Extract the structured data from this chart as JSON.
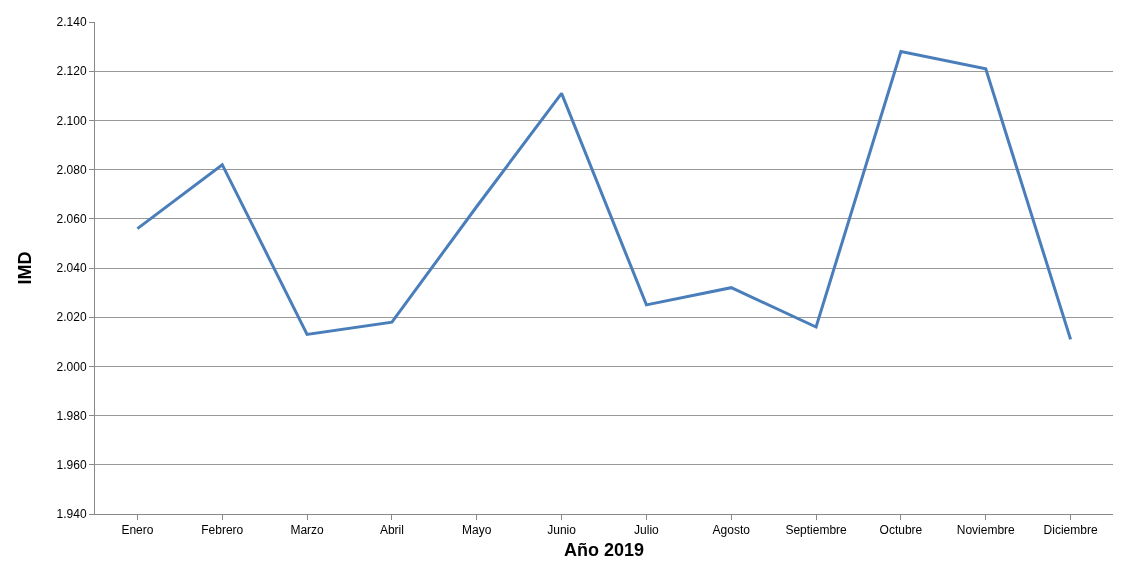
{
  "chart_data": {
    "type": "line",
    "xlabel": "Año 2019",
    "ylabel": "IMD",
    "categories": [
      "Enero",
      "Febrero",
      "Marzo",
      "Abril",
      "Mayo",
      "Junio",
      "Julio",
      "Agosto",
      "Septiembre",
      "Octubre",
      "Noviembre",
      "Diciembre"
    ],
    "series": [
      {
        "color": "#4a7ebb",
        "values": [
          2056,
          2082,
          2013,
          2018,
          2065,
          2111,
          2025,
          2032,
          2016,
          2128,
          2121,
          2011
        ]
      }
    ],
    "ylim": [
      1940,
      2140
    ],
    "yticks": [
      {
        "value": 1940,
        "label": "1.940"
      },
      {
        "value": 1960,
        "label": "1.960"
      },
      {
        "value": 1980,
        "label": "1.980"
      },
      {
        "value": 2000,
        "label": "2.000"
      },
      {
        "value": 2020,
        "label": "2.020"
      },
      {
        "value": 2040,
        "label": "2.040"
      },
      {
        "value": 2060,
        "label": "2.060"
      },
      {
        "value": 2080,
        "label": "2.080"
      },
      {
        "value": 2100,
        "label": "2.100"
      },
      {
        "value": 2120,
        "label": "2.120"
      },
      {
        "value": 2140,
        "label": "2.140"
      }
    ],
    "grid": "y",
    "legend": false,
    "marker": "none",
    "line_style": "solid"
  }
}
